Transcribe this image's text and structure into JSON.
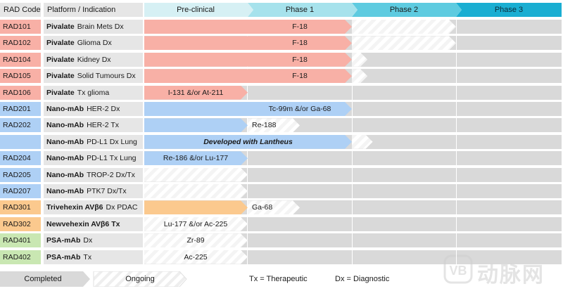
{
  "header": {
    "code_label": "RAD Code",
    "platform_label": "Platform / Indication",
    "phases": [
      "Pre-clinical",
      "Phase 1",
      "Phase 2",
      "Phase 3"
    ]
  },
  "rows": [
    {
      "code": "RAD101",
      "platform": "Pivalate",
      "indication": "Brain Mets Dx",
      "bar_label": "F-18",
      "end_phase": 2,
      "hatch_phase": 3,
      "color": "#f8b0a6",
      "code_color": "#f8b0a6",
      "label_center": true
    },
    {
      "code": "RAD102",
      "platform": "Pivalate",
      "indication": "Glioma Dx",
      "bar_label": "F-18",
      "end_phase": 2,
      "hatch_phase": 3,
      "color": "#f8b0a6",
      "code_color": "#f8b0a6",
      "label_center": true
    },
    {
      "code": "RAD104",
      "platform": "Pivalate",
      "indication": "Kidney Dx",
      "bar_label": "F-18",
      "end_phase": 2,
      "hatch_phase": 2.15,
      "color": "#f8b0a6",
      "code_color": "#f8b0a6",
      "label_center": true
    },
    {
      "code": "RAD105",
      "platform": "Pivalate",
      "indication": "Solid Tumours Dx",
      "bar_label": "F-18",
      "end_phase": 2,
      "hatch_phase": 2.15,
      "color": "#f8b0a6",
      "code_color": "#f8b0a6",
      "label_center": true
    },
    {
      "code": "RAD106",
      "platform": "Pivalate",
      "indication": "Tx glioma",
      "bar_label": "I-131 &/or At-211",
      "end_phase": 1,
      "hatch_phase": 1,
      "color": "#f8b0a6",
      "code_color": "#f8b0a6",
      "label_center": false
    },
    {
      "code": "RAD201",
      "platform": "Nano-mAb",
      "indication": "HER-2 Dx",
      "bar_label": "Tc-99m &/or Ga-68",
      "end_phase": 2,
      "hatch_phase": 2,
      "color": "#aed0f5",
      "code_color": "#aed0f5",
      "label_center": true
    },
    {
      "code": "RAD202",
      "platform": "Nano-mAb",
      "indication": "HER-2 Tx",
      "bar_label": "Re-188",
      "end_phase": 1,
      "hatch_phase": 1.5,
      "color": "#aed0f5",
      "code_color": "#aed0f5",
      "label_center": false,
      "label_in_hatch": true
    },
    {
      "code": "",
      "platform": "Nano-mAb",
      "indication": "PD-L1 Dx Lung",
      "bar_label": "Developed with Lantheus",
      "end_phase": 2,
      "hatch_phase": 2.2,
      "color": "#aed0f5",
      "code_color": "#aed0f5",
      "label_center": true,
      "italic": true
    },
    {
      "code": "RAD204",
      "platform": "Nano-mAb",
      "indication": "PD-L1 Tx Lung",
      "bar_label": "Re-186 &/or Lu-177",
      "end_phase": 1,
      "hatch_phase": 1,
      "color": "#aed0f5",
      "code_color": "#aed0f5",
      "label_center": false
    },
    {
      "code": "RAD205",
      "platform": "Nano-mAb",
      "indication": "TROP-2 Dx/Tx",
      "bar_label": "",
      "end_phase": 0,
      "hatch_phase": 1,
      "color": "#aed0f5",
      "code_color": "#aed0f5",
      "label_center": false
    },
    {
      "code": "RAD207",
      "platform": "Nano-mAb",
      "indication": "PTK7 Dx/Tx",
      "bar_label": "",
      "end_phase": 0,
      "hatch_phase": 1,
      "color": "#aed0f5",
      "code_color": "#aed0f5",
      "label_center": false
    },
    {
      "code": "RAD301",
      "platform": "Trivehexin AVβ6",
      "indication": "Dx PDAC",
      "bar_label": "Ga-68",
      "end_phase": 1,
      "hatch_phase": 1.5,
      "color": "#fbc98e",
      "code_color": "#fbc98e",
      "label_center": false,
      "label_in_hatch": true
    },
    {
      "code": "RAD302",
      "platform": "Newvehexin AVβ6 Tx",
      "indication": "",
      "bar_label": "Lu-177 &/or Ac-225",
      "end_phase": 0,
      "hatch_phase": 1,
      "color": "#fbc98e",
      "code_color": "#fbc98e",
      "label_center": false
    },
    {
      "code": "RAD401",
      "platform": "PSA-mAb",
      "indication": "Dx",
      "bar_label": "Zr-89",
      "end_phase": 0,
      "hatch_phase": 1,
      "color": "#c9e7b2",
      "code_color": "#c9e7b2",
      "label_center": false
    },
    {
      "code": "RAD402",
      "platform": "PSA-mAb",
      "indication": "Tx",
      "bar_label": "Ac-225",
      "end_phase": 0,
      "hatch_phase": 1,
      "color": "#c9e7b2",
      "code_color": "#c9e7b2",
      "label_center": false
    }
  ],
  "legend": {
    "completed": "Completed",
    "ongoing": "Ongoing",
    "tx": "Tx = Therapeutic",
    "dx": "Dx = Diagnostic"
  },
  "watermark": {
    "text": "动脉网",
    "logo": "vb-logo-icon"
  },
  "colors": {
    "phase_header": [
      "#d6f0f4",
      "#a6e2ec",
      "#5ecbe0",
      "#1aaed2"
    ],
    "grid_bg": "#d9d9d9"
  }
}
